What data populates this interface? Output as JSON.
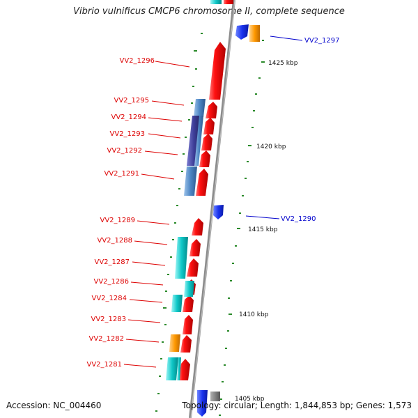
{
  "title": "Vibrio vulnificus CMCP6 chromosome II, complete sequence",
  "footer": {
    "accession": "Accession: NC_004460",
    "topology": "Topology: circular; Length: 1,844,853 bp; Genes: 1,573"
  },
  "colors": {
    "forward_gene": "#ee0000",
    "reverse_gene": "#1a33ee",
    "label_red": "#dd0000",
    "label_blue": "#0000cc",
    "cyan_gene": "#00c8c8",
    "steelblue_gene": "#4d86c4",
    "indigo_gene": "#3c3c96",
    "orange_gene": "#ff9900",
    "backbone": "#909090",
    "tick": "#2a8a2a"
  },
  "ruler": [
    "1425 kbp",
    "1420 kbp",
    "1415 kbp",
    "1410 kbp",
    "1405 kbp"
  ],
  "forward_labels": [
    "VV2_1296",
    "VV2_1295",
    "VV2_1294",
    "VV2_1293",
    "VV2_1292",
    "VV2_1291",
    "VV2_1289",
    "VV2_1288",
    "VV2_1287",
    "VV2_1286",
    "VV2_1284",
    "VV2_1283",
    "VV2_1282",
    "VV2_1281"
  ],
  "reverse_labels": [
    "VV2_1297",
    "VV2_1290"
  ]
}
